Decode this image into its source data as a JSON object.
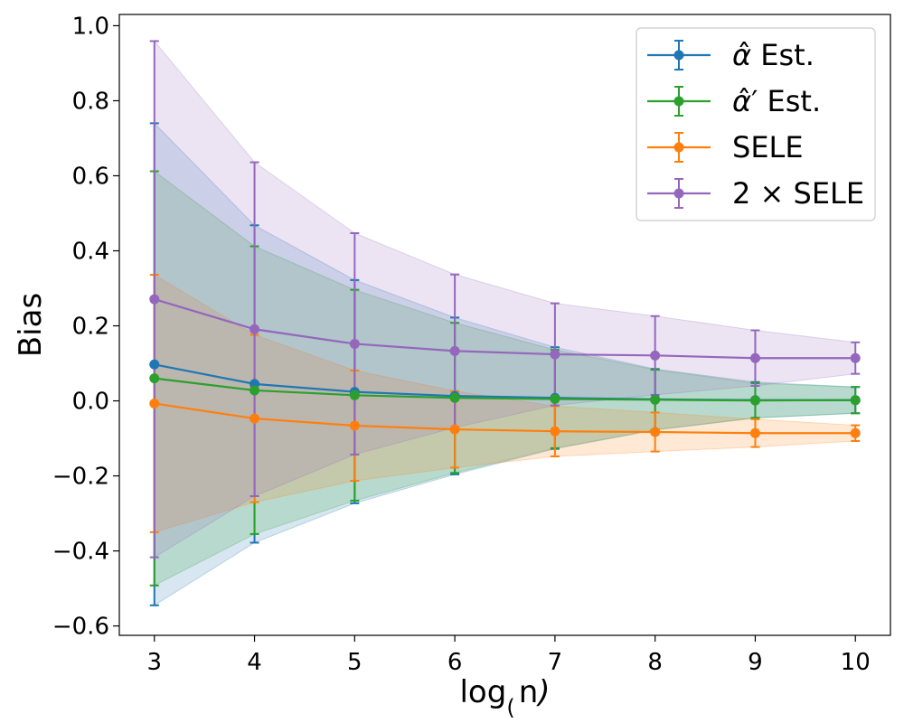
{
  "chart_data": {
    "type": "line",
    "xlabel": "log₂(n)",
    "ylabel": "Bias",
    "x": [
      3,
      4,
      5,
      6,
      7,
      8,
      9,
      10
    ],
    "xticks": [
      "3",
      "4",
      "5",
      "6",
      "7",
      "8",
      "9",
      "10"
    ],
    "yticks": [
      -0.6,
      -0.4,
      -0.2,
      0.0,
      0.2,
      0.4,
      0.6,
      0.8,
      1.0
    ],
    "ytick_labels": [
      "−0.6",
      "−0.4",
      "−0.2",
      "0.0",
      "0.2",
      "0.4",
      "0.6",
      "0.8",
      "1.0"
    ],
    "xlim": [
      2.65,
      10.35
    ],
    "ylim": [
      -0.625,
      1.03
    ],
    "legend_position": "top-right",
    "grid": false,
    "series": [
      {
        "name": "α̂ Est.",
        "name_parts": [
          "α",
          "̂",
          "",
          " Est."
        ],
        "color": "#1f77b4",
        "values": [
          0.097,
          0.045,
          0.024,
          0.013,
          0.008,
          0.004,
          0.002,
          0.002
        ],
        "lower": [
          -0.545,
          -0.378,
          -0.273,
          -0.196,
          -0.128,
          -0.078,
          -0.046,
          -0.033
        ],
        "upper": [
          0.74,
          0.468,
          0.322,
          0.222,
          0.143,
          0.085,
          0.05,
          0.037
        ]
      },
      {
        "name": "α̂′ Est.",
        "name_parts": [
          "α",
          "̂",
          "′",
          " Est."
        ],
        "color": "#2ca02c",
        "values": [
          0.06,
          0.028,
          0.015,
          0.008,
          0.005,
          0.003,
          0.001,
          0.002
        ],
        "lower": [
          -0.492,
          -0.355,
          -0.266,
          -0.192,
          -0.126,
          -0.077,
          -0.045,
          -0.033
        ],
        "upper": [
          0.612,
          0.412,
          0.296,
          0.208,
          0.136,
          0.083,
          0.047,
          0.037
        ]
      },
      {
        "name": "SELE",
        "name_parts": [
          "SELE",
          "",
          "",
          ""
        ],
        "color": "#ff7f0e",
        "values": [
          -0.007,
          -0.047,
          -0.066,
          -0.076,
          -0.081,
          -0.083,
          -0.086,
          -0.086
        ],
        "lower": [
          -0.35,
          -0.27,
          -0.213,
          -0.178,
          -0.148,
          -0.135,
          -0.123,
          -0.107
        ],
        "upper": [
          0.336,
          0.176,
          0.081,
          0.026,
          -0.014,
          -0.031,
          -0.049,
          -0.065
        ]
      },
      {
        "name": "2 × SELE",
        "name_parts": [
          "2 × SELE",
          "",
          "",
          ""
        ],
        "color": "#9467bd",
        "values": [
          0.271,
          0.191,
          0.152,
          0.133,
          0.124,
          0.121,
          0.114,
          0.114
        ],
        "lower": [
          -0.417,
          -0.254,
          -0.143,
          -0.071,
          -0.012,
          0.016,
          0.04,
          0.072
        ],
        "upper": [
          0.959,
          0.636,
          0.447,
          0.337,
          0.26,
          0.226,
          0.188,
          0.156
        ]
      }
    ]
  }
}
